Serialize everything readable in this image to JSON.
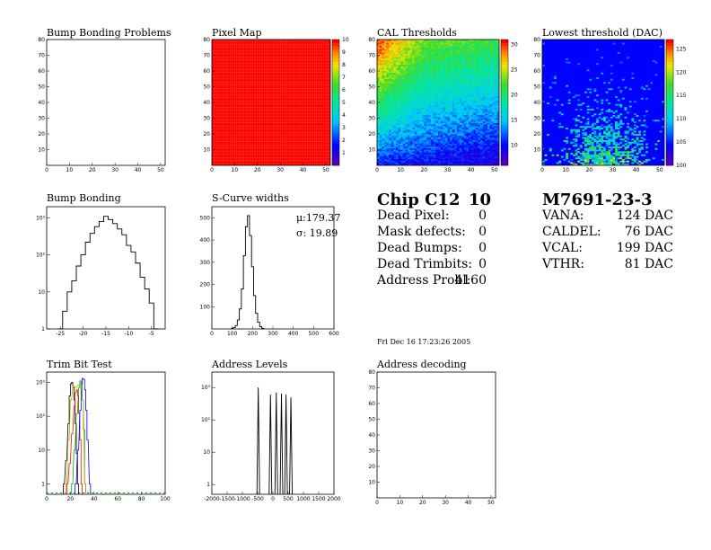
{
  "chart_data": [
    {
      "id": "bump-problems",
      "type": "heatmap",
      "title": "Bump Bonding Problems",
      "xlim": [
        0,
        52
      ],
      "ylim": [
        0,
        80
      ],
      "xticks": [
        0,
        10,
        20,
        30,
        40,
        50
      ],
      "yticks": [
        10,
        20,
        30,
        40,
        50,
        60,
        70,
        80
      ],
      "values": "empty"
    },
    {
      "id": "pixel-map",
      "type": "heatmap",
      "title": "Pixel Map",
      "xlim": [
        0,
        52
      ],
      "ylim": [
        0,
        80
      ],
      "xticks": [
        0,
        10,
        20,
        30,
        40,
        50
      ],
      "yticks": [
        10,
        20,
        30,
        40,
        50,
        60,
        70,
        80
      ],
      "zlim": [
        0,
        10
      ],
      "zticks": [
        1,
        2,
        3,
        4,
        5,
        6,
        7,
        8,
        9,
        10
      ],
      "uniform_value": 10
    },
    {
      "id": "cal-thresholds",
      "type": "heatmap",
      "title": "CAL Thresholds",
      "xlim": [
        0,
        52
      ],
      "ylim": [
        0,
        80
      ],
      "xticks": [
        0,
        10,
        20,
        30,
        40,
        50
      ],
      "yticks": [
        10,
        20,
        30,
        40,
        50,
        60,
        70,
        80
      ],
      "zlim": [
        6,
        31
      ],
      "zticks": [
        10,
        15,
        20,
        25,
        30
      ]
    },
    {
      "id": "lowest-threshold",
      "type": "heatmap",
      "title": "Lowest threshold (DAC)",
      "xlim": [
        0,
        52
      ],
      "ylim": [
        0,
        80
      ],
      "xticks": [
        0,
        10,
        20,
        30,
        40,
        50
      ],
      "yticks": [
        10,
        20,
        30,
        40,
        50,
        60,
        70,
        80
      ],
      "zlim": [
        100,
        127
      ],
      "zticks": [
        100,
        105,
        110,
        115,
        120,
        125
      ]
    },
    {
      "id": "bump-bonding",
      "type": "line",
      "title": "Bump Bonding",
      "ylog": true,
      "xlim": [
        -28,
        -2
      ],
      "ylim": [
        1,
        2000
      ],
      "xticks": [
        -25,
        -20,
        -15,
        -10,
        -5
      ],
      "yticks": [
        "1",
        "10",
        "10²",
        "10³"
      ],
      "x": [
        -25,
        -24,
        -23,
        -22,
        -21,
        -20,
        -19,
        -18,
        -17,
        -16,
        -15,
        -14,
        -13,
        -12,
        -11,
        -10,
        -9,
        -8,
        -7,
        -6,
        -5,
        -4
      ],
      "y": [
        1,
        3,
        10,
        20,
        50,
        100,
        220,
        380,
        580,
        800,
        1100,
        900,
        700,
        500,
        350,
        180,
        120,
        60,
        25,
        12,
        5,
        1
      ]
    },
    {
      "id": "s-curve-widths",
      "type": "line",
      "title": "S-Curve widths",
      "xlim": [
        0,
        600
      ],
      "ylim": [
        0,
        550
      ],
      "xticks": [
        0,
        100,
        200,
        300,
        400,
        500,
        600
      ],
      "yticks": [
        100,
        200,
        300,
        400,
        500
      ],
      "x": [
        100,
        110,
        120,
        130,
        140,
        150,
        160,
        170,
        180,
        190,
        200,
        210,
        220,
        230,
        240,
        250
      ],
      "y": [
        2,
        6,
        15,
        40,
        90,
        180,
        330,
        460,
        510,
        420,
        280,
        150,
        70,
        30,
        10,
        3
      ],
      "stats": {
        "mean": "μ:179.37",
        "sigma": "σ: 19.89"
      }
    },
    {
      "id": "trim-bit-test",
      "type": "line",
      "title": "Trim Bit Test",
      "ylog": true,
      "xlim": [
        0,
        100
      ],
      "ylim": [
        0.5,
        2000
      ],
      "xticks": [
        0,
        20,
        40,
        60,
        80,
        100
      ],
      "yticks": [
        "1",
        "10",
        "10²",
        "10³"
      ],
      "series": [
        {
          "color": "#000000",
          "x": [
            14,
            16,
            18,
            19,
            20,
            21,
            22,
            23,
            24,
            25,
            26
          ],
          "y": [
            1,
            5,
            60,
            400,
            900,
            1000,
            700,
            300,
            60,
            8,
            1
          ]
        },
        {
          "color": "#ff0000",
          "x": [
            17,
            19,
            21,
            23,
            24,
            25,
            26,
            27,
            28,
            29
          ],
          "y": [
            1,
            4,
            30,
            200,
            500,
            600,
            400,
            120,
            20,
            1
          ]
        },
        {
          "color": "#00aa00",
          "x": [
            21,
            23,
            25,
            27,
            28,
            29,
            30,
            31,
            32
          ],
          "y": [
            1,
            10,
            120,
            700,
            1100,
            900,
            300,
            40,
            1
          ]
        },
        {
          "color": "#0000ff",
          "x": [
            24,
            26,
            28,
            29,
            30,
            31,
            32,
            33,
            34,
            36
          ],
          "y": [
            1,
            10,
            150,
            900,
            1300,
            1200,
            600,
            150,
            20,
            1
          ]
        },
        {
          "color": "#aaaa00",
          "x": [
            16,
            18,
            20,
            22,
            24,
            26,
            28,
            30,
            32
          ],
          "y": [
            1,
            20,
            300,
            800,
            700,
            800,
            900,
            300,
            1
          ]
        }
      ]
    },
    {
      "id": "address-levels",
      "type": "line",
      "title": "Address Levels",
      "ylog": true,
      "xlim": [
        -2000,
        2000
      ],
      "ylim": [
        0.5,
        3000
      ],
      "xticks": [
        -2000,
        -1500,
        -1000,
        -500,
        0,
        500,
        1000,
        1500,
        2000
      ],
      "xticklabels": [
        "-2000",
        "-1500",
        "-1000",
        "-500",
        "0",
        "500",
        "1000",
        "1500",
        "2000"
      ],
      "yticks": [
        "1",
        "10",
        "10²",
        "10³"
      ],
      "peaks": [
        {
          "x": -480,
          "y": 1000
        },
        {
          "x": -80,
          "y": 600
        },
        {
          "x": 110,
          "y": 700
        },
        {
          "x": 280,
          "y": 650
        },
        {
          "x": 430,
          "y": 600
        },
        {
          "x": 590,
          "y": 500
        }
      ]
    },
    {
      "id": "address-decoding",
      "type": "heatmap",
      "title": "Address decoding",
      "xlim": [
        0,
        52
      ],
      "ylim": [
        0,
        80
      ],
      "xticks": [
        0,
        10,
        20,
        30,
        40,
        50
      ],
      "yticks": [
        10,
        20,
        30,
        40,
        50,
        60,
        70,
        80
      ],
      "values": "empty"
    }
  ],
  "info": {
    "chip_label": "Chip C12",
    "chip_number": "10",
    "rows": [
      {
        "label": "Dead Pixel:",
        "value": "0"
      },
      {
        "label": "Mask defects:",
        "value": "0"
      },
      {
        "label": "Dead Bumps:",
        "value": "0"
      },
      {
        "label": "Dead Trimbits:",
        "value": "0"
      },
      {
        "label": "Address Probl:",
        "value": "4160"
      }
    ],
    "date": "Fri Dec 16 17:23:26 2005"
  },
  "module": {
    "id": "M7691-23-3",
    "rows": [
      {
        "label": "VANA:",
        "value": "124 DAC"
      },
      {
        "label": "CALDEL:",
        "value": "76 DAC"
      },
      {
        "label": "VCAL:",
        "value": "199 DAC"
      },
      {
        "label": "VTHR:",
        "value": "81 DAC"
      }
    ]
  }
}
